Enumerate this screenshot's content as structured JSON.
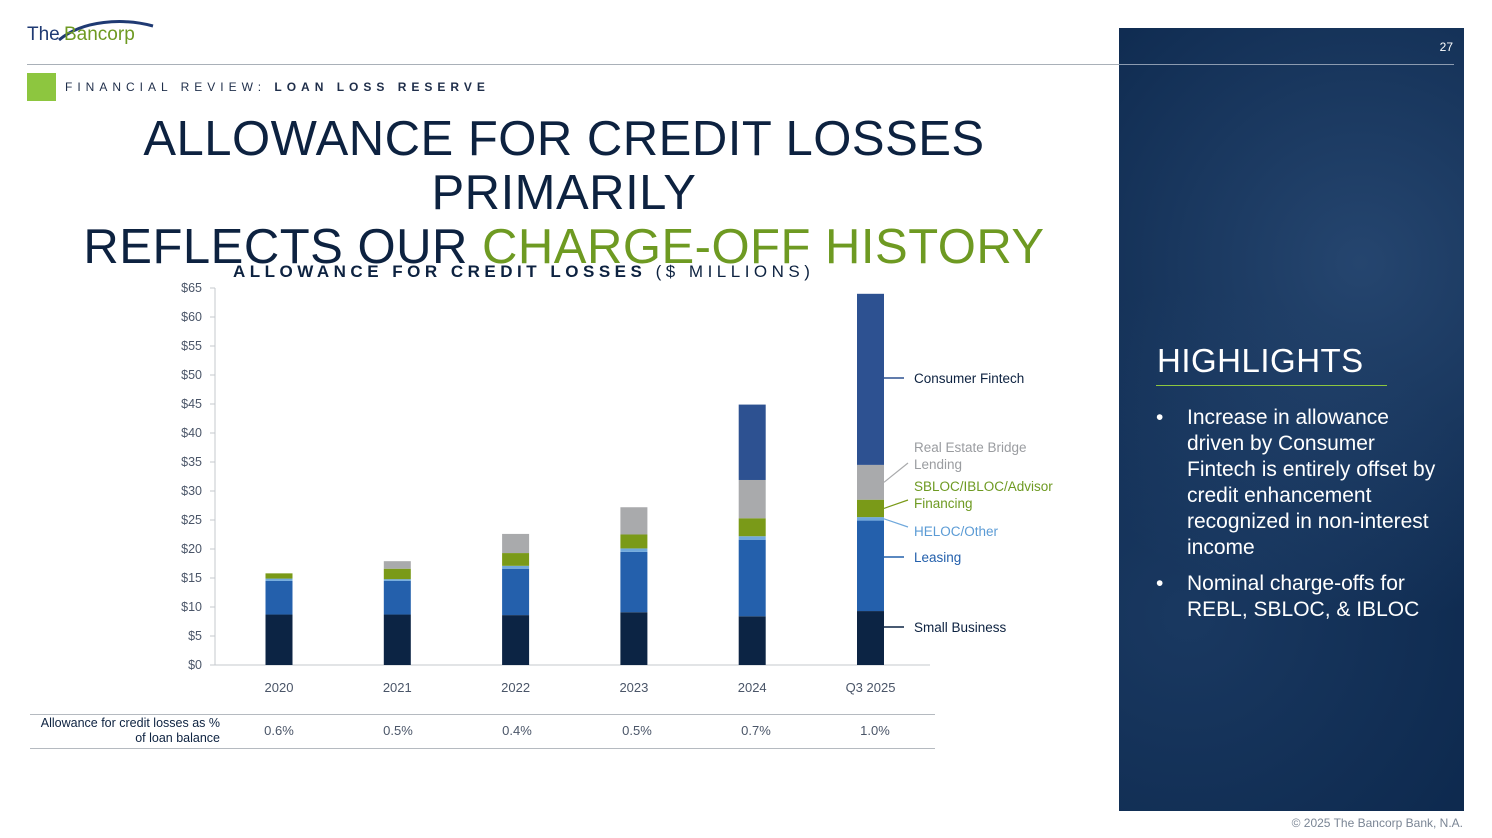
{
  "brand": {
    "logo_the": "The",
    "logo_name": "Bancorp",
    "copyright": "© 2025 The Bancorp Bank, N.A.",
    "page_number": "27"
  },
  "section": {
    "prefix": "FINANCIAL REVIEW:",
    "title": "LOAN LOSS RESERVE"
  },
  "headline": {
    "line1": "ALLOWANCE FOR CREDIT LOSSES PRIMARILY",
    "line2_prefix": "REFLECTS OUR ",
    "line2_highlight": "CHARGE-OFF HISTORY"
  },
  "chart_data": {
    "type": "bar",
    "stacked": true,
    "title": "ALLOWANCE FOR CREDIT LOSSES",
    "subtitle": "($ MILLIONS)",
    "categories": [
      "2020",
      "2021",
      "2022",
      "2023",
      "2024",
      "Q3 2025"
    ],
    "y_ticks": [
      "$0",
      "$5",
      "$10",
      "$15",
      "$20",
      "$25",
      "$30",
      "$35",
      "$40",
      "$45",
      "$50",
      "$55",
      "$60",
      "$65"
    ],
    "ylim": [
      0,
      65
    ],
    "series": [
      {
        "name": "Small Business",
        "color": "#0c2444",
        "values": [
          8.7,
          8.7,
          8.6,
          9.1,
          8.4,
          9.3
        ]
      },
      {
        "name": "Leasing",
        "color": "#2460ac",
        "values": [
          5.8,
          5.8,
          8.0,
          10.4,
          13.2,
          15.6
        ]
      },
      {
        "name": "HELOC/Other",
        "color": "#6fa8dc",
        "values": [
          0.4,
          0.3,
          0.5,
          0.6,
          0.6,
          0.6
        ]
      },
      {
        "name": "SBLOC/IBLOC/Advisor Financing",
        "color": "#7a9a18",
        "values": [
          0.9,
          1.8,
          2.2,
          2.4,
          3.1,
          3.0
        ]
      },
      {
        "name": "Real Estate Bridge Lending",
        "color": "#a9aaac",
        "values": [
          0.0,
          1.3,
          3.3,
          4.7,
          6.6,
          6.0
        ]
      },
      {
        "name": "Consumer Fintech",
        "color": "#2d5191",
        "values": [
          0.0,
          0.0,
          0.0,
          0.0,
          13.0,
          29.5
        ]
      }
    ],
    "legend_labels": [
      {
        "lines": [
          "Consumer Fintech"
        ],
        "color": "#0d2240"
      },
      {
        "lines": [
          "Real Estate Bridge",
          "Lending"
        ],
        "color": "#9a9ca0"
      },
      {
        "lines": [
          "SBLOC/IBLOC/Advisor",
          "Financing"
        ],
        "color": "#6e9a22"
      },
      {
        "lines": [
          "HELOC/Other"
        ],
        "color": "#5b9bd5"
      },
      {
        "lines": [
          "Leasing"
        ],
        "color": "#2460ac"
      },
      {
        "lines": [
          "Small Business"
        ],
        "color": "#0d2240"
      }
    ]
  },
  "table": {
    "label": "Allowance for credit losses as % of loan balance",
    "values": [
      "0.6%",
      "0.5%",
      "0.4%",
      "0.5%",
      "0.7%",
      "1.0%"
    ]
  },
  "highlights": {
    "title": "HIGHLIGHTS",
    "bullet_char": "•",
    "bullets": [
      "Increase in allowance driven by Consumer Fintech is entirely offset by credit enhancement recognized in non-interest income",
      "Nominal charge-offs for REBL, SBLOC, & IBLOC"
    ]
  }
}
